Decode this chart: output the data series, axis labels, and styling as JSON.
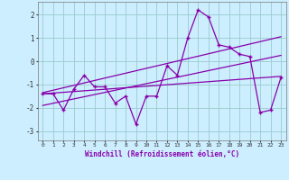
{
  "x": [
    0,
    1,
    2,
    3,
    4,
    5,
    6,
    7,
    8,
    9,
    10,
    11,
    12,
    13,
    14,
    15,
    16,
    17,
    18,
    19,
    20,
    21,
    22,
    23
  ],
  "y_main": [
    -1.4,
    -1.4,
    -2.1,
    -1.2,
    -0.6,
    -1.1,
    -1.1,
    -1.8,
    -1.5,
    -2.7,
    -1.5,
    -1.5,
    -0.2,
    -0.6,
    1.0,
    2.2,
    1.9,
    0.7,
    0.6,
    0.3,
    0.2,
    -2.2,
    -2.1,
    -0.7
  ],
  "trend1_x": [
    0,
    23
  ],
  "trend1_y": [
    -1.4,
    -0.65
  ],
  "trend2_x": [
    0,
    23
  ],
  "trend2_y": [
    -1.9,
    0.25
  ],
  "trend3_x": [
    0,
    23
  ],
  "trend3_y": [
    -1.35,
    1.05
  ],
  "line_color": "#8800aa",
  "bg_color": "#cceeff",
  "grid_color": "#99cccc",
  "xlim": [
    -0.5,
    23.5
  ],
  "ylim": [
    -3.4,
    2.55
  ],
  "xlabel": "Windchill (Refroidissement éolien,°C)",
  "xticks": [
    0,
    1,
    2,
    3,
    4,
    5,
    6,
    7,
    8,
    9,
    10,
    11,
    12,
    13,
    14,
    15,
    16,
    17,
    18,
    19,
    20,
    21,
    22,
    23
  ],
  "yticks": [
    -3,
    -2,
    -1,
    0,
    1,
    2
  ]
}
